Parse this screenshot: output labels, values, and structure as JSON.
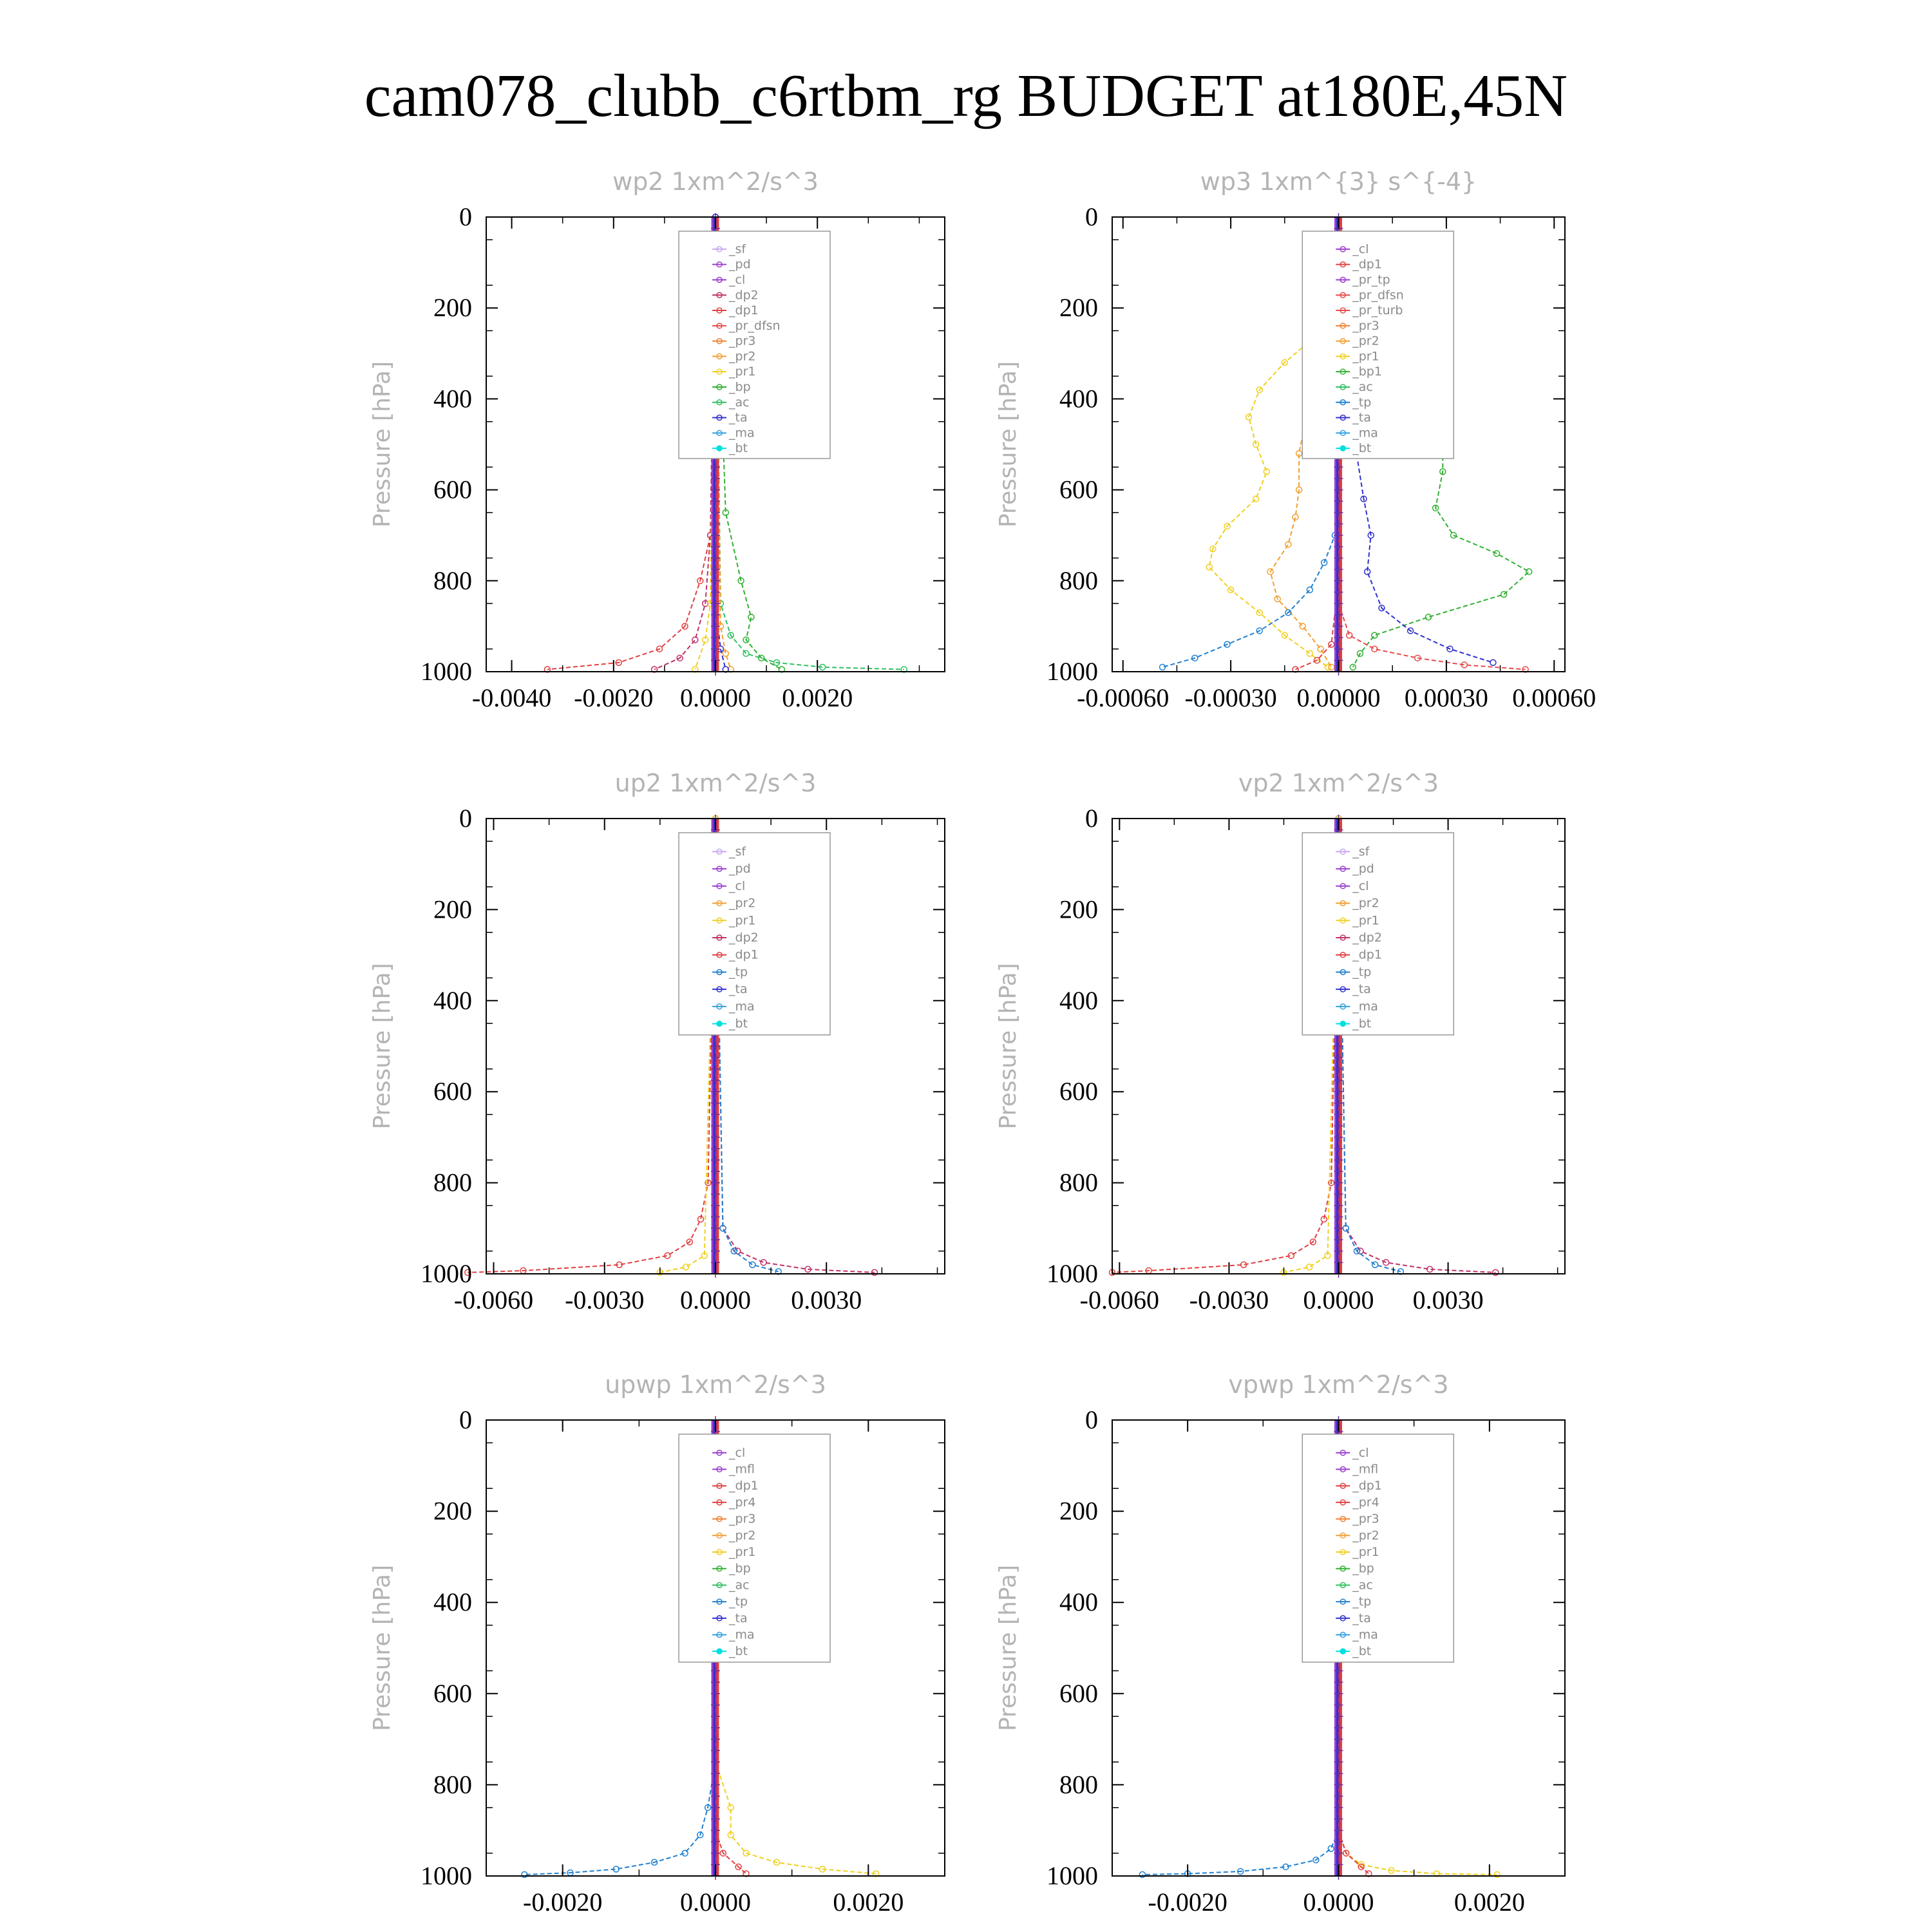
{
  "title": "cam078_clubb_c6rtbm_rg  BUDGET at180E,45N",
  "colors": {
    "_sf": "#c9a8f0",
    "_pd": "#9b3fd0",
    "_cl": "#9b3fd0",
    "_dp2": "#c0306a",
    "_dp1": "#e04040",
    "_pr_dfsn": "#e84a4a",
    "_pr_tp": "#9b3fd0",
    "_pr_turb": "#e84a4a",
    "_pr4": "#e04040",
    "_pr3": "#f08030",
    "_pr2": "#f0a030",
    "_pr1": "#f0d020",
    "_bp": "#30b030",
    "_bp1": "#30b030",
    "_ac": "#30c060",
    "_tp": "#2080d0",
    "_ta": "#3030d0",
    "_ma": "#30a0e0",
    "_bt": "#00e0e0",
    "_mfl": "#9b3fd0"
  },
  "chart_data": [
    {
      "type": "line",
      "title": "wp2  1xm^2/s^3",
      "ylabel": "Pressure [hPa]",
      "xlim": [
        -0.0045,
        0.0045
      ],
      "ylim": [
        1000,
        0
      ],
      "xticks": [
        "-0.0040",
        "-0.0020",
        "0.0000",
        "0.0020"
      ],
      "xtick_values": [
        -0.004,
        -0.002,
        0.0,
        0.002
      ],
      "yticks": [
        "0",
        "200",
        "400",
        "600",
        "800",
        "1000"
      ],
      "legend": [
        "_sf",
        "_pd",
        "_cl",
        "_dp2",
        "_dp1",
        "_pr_dfsn",
        "_pr3",
        "_pr2",
        "_pr1",
        "_bp",
        "_ac",
        "_ta",
        "_ma",
        "_bt"
      ],
      "series": [
        {
          "name": "_dp1",
          "x": [
            0,
            -0.0001,
            -0.0003,
            -0.0006,
            -0.0011,
            -0.0019,
            -0.0033
          ],
          "y": [
            0,
            700,
            800,
            900,
            950,
            980,
            995
          ]
        },
        {
          "name": "_dp2",
          "x": [
            0,
            -0.0001,
            -0.0002,
            -0.0004,
            -0.0007,
            -0.0012
          ],
          "y": [
            0,
            700,
            850,
            930,
            970,
            995
          ]
        },
        {
          "name": "_bp",
          "x": [
            0,
            0.0002,
            0.0005,
            0.0007,
            0.0006,
            0.0009,
            0.0013
          ],
          "y": [
            0,
            650,
            800,
            880,
            930,
            970,
            995
          ]
        },
        {
          "name": "_ac",
          "x": [
            0,
            0.0001,
            0.0003,
            0.0006,
            0.0012,
            0.0021,
            0.0037
          ],
          "y": [
            0,
            850,
            920,
            960,
            980,
            990,
            995
          ]
        },
        {
          "name": "_pr1",
          "x": [
            0,
            -0.0001,
            -0.0002,
            -0.0004
          ],
          "y": [
            0,
            850,
            930,
            995
          ]
        },
        {
          "name": "_pr2",
          "x": [
            0,
            0.0001,
            0.0002,
            0.0003
          ],
          "y": [
            0,
            900,
            960,
            995
          ]
        },
        {
          "name": "_ta",
          "x": [
            0,
            0,
            0.0001,
            0.0002
          ],
          "y": [
            0,
            850,
            950,
            995
          ]
        }
      ]
    },
    {
      "type": "line",
      "title": "wp3  1xm^{3} s^{-4}",
      "ylabel": "Pressure [hPa]",
      "xlim": [
        -0.00063,
        0.00063
      ],
      "ylim": [
        1000,
        0
      ],
      "xticks": [
        "-0.00060",
        "-0.00030",
        "0.00000",
        "0.00030",
        "0.00060"
      ],
      "xtick_values": [
        -0.0006,
        -0.0003,
        0.0,
        0.0003,
        0.0006
      ],
      "yticks": [
        "0",
        "200",
        "400",
        "600",
        "800",
        "1000"
      ],
      "legend": [
        "_cl",
        "_dp1",
        "_pr_tp",
        "_pr_dfsn",
        "_pr_turb",
        "_pr3",
        "_pr2",
        "_pr1",
        "_bp1",
        "_ac",
        "_tp",
        "_ta",
        "_ma",
        "_bt"
      ],
      "series": [
        {
          "name": "_bp1",
          "x": [
            1e-05,
            4e-05,
            0.00013,
            0.00026,
            0.00029,
            0.00029,
            0.00027,
            0.00032,
            0.00044,
            0.00053,
            0.00046,
            0.00025,
            0.0001,
            6e-05,
            4e-05
          ],
          "y": [
            210,
            240,
            320,
            400,
            480,
            560,
            640,
            700,
            740,
            780,
            830,
            880,
            920,
            960,
            990
          ]
        },
        {
          "name": "_pr1",
          "x": [
            -2e-05,
            -6e-05,
            -0.00015,
            -0.00022,
            -0.00025,
            -0.00023,
            -0.0002,
            -0.00023,
            -0.00031,
            -0.00035,
            -0.00036,
            -0.0003,
            -0.00022,
            -0.00015,
            -8e-05,
            -3e-05
          ],
          "y": [
            220,
            260,
            320,
            380,
            440,
            500,
            560,
            620,
            680,
            730,
            770,
            820,
            870,
            920,
            960,
            990
          ]
        },
        {
          "name": "_pr2",
          "x": [
            -1e-05,
            -3e-05,
            -6e-05,
            -9e-05,
            -0.00011,
            -0.00011,
            -0.00012,
            -0.00014,
            -0.00019,
            -0.00017,
            -0.0001,
            -5e-05,
            -2e-05
          ],
          "y": [
            220,
            280,
            360,
            440,
            520,
            600,
            660,
            720,
            780,
            840,
            900,
            950,
            990
          ]
        },
        {
          "name": "_tp",
          "x": [
            0,
            -1e-05,
            -4e-05,
            -8e-05,
            -0.00014,
            -0.00022,
            -0.00031,
            -0.0004,
            -0.00049
          ],
          "y": [
            600,
            700,
            760,
            820,
            870,
            910,
            940,
            970,
            990
          ]
        },
        {
          "name": "_ta",
          "x": [
            2e-05,
            5e-05,
            6e-05,
            5e-05,
            7e-05,
            9e-05,
            8e-05,
            0.00012,
            0.0002,
            0.00031,
            0.00043
          ],
          "y": [
            230,
            320,
            420,
            520,
            620,
            700,
            780,
            860,
            910,
            950,
            980
          ]
        },
        {
          "name": "_pr_turb",
          "x": [
            0,
            3e-05,
            0.0001,
            0.00022,
            0.00035,
            0.00052
          ],
          "y": [
            850,
            920,
            950,
            970,
            985,
            995
          ]
        },
        {
          "name": "_dp1",
          "x": [
            0,
            -2e-05,
            -6e-05,
            -0.00012
          ],
          "y": [
            800,
            940,
            975,
            995
          ]
        }
      ]
    },
    {
      "type": "line",
      "title": "up2  1xm^2/s^3",
      "ylabel": "Pressure [hPa]",
      "xlim": [
        -0.0062,
        0.0062
      ],
      "ylim": [
        1000,
        0
      ],
      "xticks": [
        "-0.0060",
        "-0.0030",
        "0.0000",
        "0.0030"
      ],
      "xtick_values": [
        -0.006,
        -0.003,
        0.0,
        0.003
      ],
      "yticks": [
        "0",
        "200",
        "400",
        "600",
        "800",
        "1000"
      ],
      "legend": [
        "_sf",
        "_pd",
        "_cl",
        "_pr2",
        "_pr1",
        "_dp2",
        "_dp1",
        "_tp",
        "_ta",
        "_ma",
        "_bt"
      ],
      "series": [
        {
          "name": "_dp1",
          "x": [
            0,
            -0.0002,
            -0.0004,
            -0.0007,
            -0.0013,
            -0.0026,
            -0.0052,
            -0.0067
          ],
          "y": [
            0,
            800,
            880,
            930,
            960,
            980,
            993,
            997
          ]
        },
        {
          "name": "_dp2",
          "x": [
            0,
            0.0002,
            0.0006,
            0.0013,
            0.0025,
            0.0043
          ],
          "y": [
            0,
            900,
            950,
            975,
            990,
            997
          ]
        },
        {
          "name": "_tp",
          "x": [
            0,
            0.0002,
            0.0005,
            0.001,
            0.0017
          ],
          "y": [
            0,
            900,
            950,
            980,
            995
          ]
        },
        {
          "name": "_pr1",
          "x": [
            0,
            -0.0003,
            -0.0008,
            -0.0015
          ],
          "y": [
            0,
            960,
            985,
            997
          ]
        }
      ]
    },
    {
      "type": "line",
      "title": "vp2  1xm^2/s^3",
      "ylabel": "Pressure [hPa]",
      "xlim": [
        -0.0062,
        0.0062
      ],
      "ylim": [
        1000,
        0
      ],
      "xticks": [
        "-0.0060",
        "-0.0030",
        "0.0000",
        "0.0030"
      ],
      "xtick_values": [
        -0.006,
        -0.003,
        0.0,
        0.003
      ],
      "yticks": [
        "0",
        "200",
        "400",
        "600",
        "800",
        "1000"
      ],
      "legend": [
        "_sf",
        "_pd",
        "_cl",
        "_pr2",
        "_pr1",
        "_dp2",
        "_dp1",
        "_tp",
        "_ta",
        "_ma",
        "_bt"
      ],
      "series": [
        {
          "name": "_dp1",
          "x": [
            0,
            -0.0002,
            -0.0004,
            -0.0007,
            -0.0013,
            -0.0026,
            -0.0052,
            -0.0062
          ],
          "y": [
            0,
            800,
            880,
            930,
            960,
            980,
            993,
            997
          ]
        },
        {
          "name": "_dp2",
          "x": [
            0,
            0.0002,
            0.0006,
            0.0013,
            0.0025,
            0.0043
          ],
          "y": [
            0,
            900,
            950,
            975,
            990,
            997
          ]
        },
        {
          "name": "_tp",
          "x": [
            0,
            0.0002,
            0.0005,
            0.001,
            0.0017
          ],
          "y": [
            0,
            900,
            950,
            980,
            995
          ]
        },
        {
          "name": "_pr1",
          "x": [
            0,
            -0.0003,
            -0.0008,
            -0.0015
          ],
          "y": [
            0,
            960,
            985,
            997
          ]
        }
      ]
    },
    {
      "type": "line",
      "title": "upwp  1xm^2/s^3",
      "ylabel": "Pressure [hPa]",
      "xlim": [
        -0.003,
        0.003
      ],
      "ylim": [
        1000,
        0
      ],
      "xticks": [
        "-0.0020",
        "0.0000",
        "0.0020"
      ],
      "xtick_values": [
        -0.002,
        0.0,
        0.002
      ],
      "yticks": [
        "0",
        "200",
        "400",
        "600",
        "800",
        "1000"
      ],
      "legend": [
        "_cl",
        "_mfl",
        "_dp1",
        "_pr4",
        "_pr3",
        "_pr2",
        "_pr1",
        "_bp",
        "_ac",
        "_tp",
        "_ta",
        "_ma",
        "_bt"
      ],
      "series": [
        {
          "name": "_tp",
          "x": [
            0,
            -0.0001,
            -0.0002,
            -0.0004,
            -0.0008,
            -0.0013,
            -0.0019,
            -0.0025
          ],
          "y": [
            750,
            850,
            910,
            950,
            970,
            985,
            993,
            997
          ]
        },
        {
          "name": "_pr1",
          "x": [
            0,
            0.0002,
            0.0002,
            0.0004,
            0.0008,
            0.0014,
            0.0021
          ],
          "y": [
            750,
            850,
            910,
            950,
            970,
            985,
            995
          ]
        },
        {
          "name": "_pr4",
          "x": [
            0,
            0.0001,
            0.0003,
            0.0004
          ],
          "y": [
            900,
            950,
            980,
            995
          ]
        }
      ]
    },
    {
      "type": "line",
      "title": "vpwp  1xm^2/s^3",
      "ylabel": "Pressure [hPa]",
      "xlim": [
        -0.003,
        0.003
      ],
      "ylim": [
        1000,
        0
      ],
      "xticks": [
        "-0.0020",
        "0.0000",
        "0.0020"
      ],
      "xtick_values": [
        -0.002,
        0.0,
        0.002
      ],
      "yticks": [
        "0",
        "200",
        "400",
        "600",
        "800",
        "1000"
      ],
      "legend": [
        "_cl",
        "_mfl",
        "_dp1",
        "_pr4",
        "_pr3",
        "_pr2",
        "_pr1",
        "_bp",
        "_ac",
        "_tp",
        "_ta",
        "_ma",
        "_bt"
      ],
      "series": [
        {
          "name": "_tp",
          "x": [
            0,
            -0.0001,
            -0.0003,
            -0.0007,
            -0.0013,
            -0.002,
            -0.0026
          ],
          "y": [
            900,
            940,
            965,
            980,
            990,
            995,
            997
          ]
        },
        {
          "name": "_pr1",
          "x": [
            0,
            0.0001,
            0.0003,
            0.0007,
            0.0013,
            0.0021
          ],
          "y": [
            900,
            950,
            975,
            988,
            995,
            997
          ]
        },
        {
          "name": "_pr4",
          "x": [
            0,
            0.0001,
            0.0003,
            0.0004
          ],
          "y": [
            900,
            950,
            980,
            995
          ]
        }
      ]
    }
  ]
}
